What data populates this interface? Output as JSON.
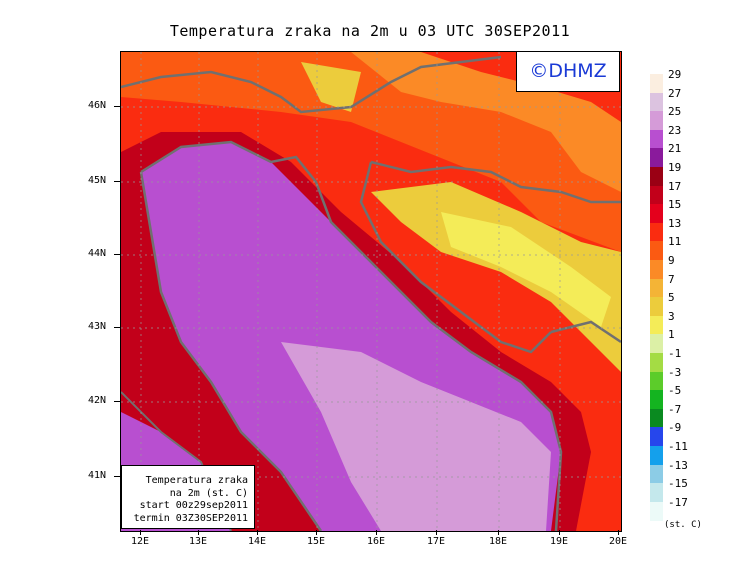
{
  "title": "Temperatura zraka na 2m u 03 UTC 30SEP2011",
  "logo": "©DHMZ",
  "info": {
    "line1": "Temperatura zraka",
    "line2": "na 2m (st. C)",
    "line3": "start 00z29sep2011",
    "line4": "termin 03Z30SEP2011"
  },
  "lat_labels": [
    "46N",
    "45N",
    "44N",
    "43N",
    "42N",
    "41N"
  ],
  "lon_labels": [
    "12E",
    "13E",
    "14E",
    "15E",
    "16E",
    "17E",
    "18E",
    "19E",
    "20E"
  ],
  "legend": {
    "unit": "(st. C)",
    "labels": [
      "29",
      "27",
      "25",
      "23",
      "21",
      "19",
      "17",
      "15",
      "13",
      "11",
      "9",
      "7",
      "5",
      "3",
      "1",
      "-1",
      "-3",
      "-5",
      "-7",
      "-9",
      "-11",
      "-13",
      "-15",
      "-17"
    ],
    "colors": [
      "#fbeee0",
      "#dcc3e0",
      "#d59bd8",
      "#b84fd0",
      "#8a1a9c",
      "#9a0014",
      "#c2001a",
      "#e4001c",
      "#fa2c10",
      "#fb5a12",
      "#fb8a26",
      "#f4b436",
      "#eccc3c",
      "#f4ec58",
      "#dcf0a6",
      "#a4dc44",
      "#5ccc2a",
      "#14b420",
      "#0a8a20",
      "#2646ec",
      "#14a0ec",
      "#8ccce6",
      "#c4e8ec",
      "#ecfaf8"
    ]
  }
}
